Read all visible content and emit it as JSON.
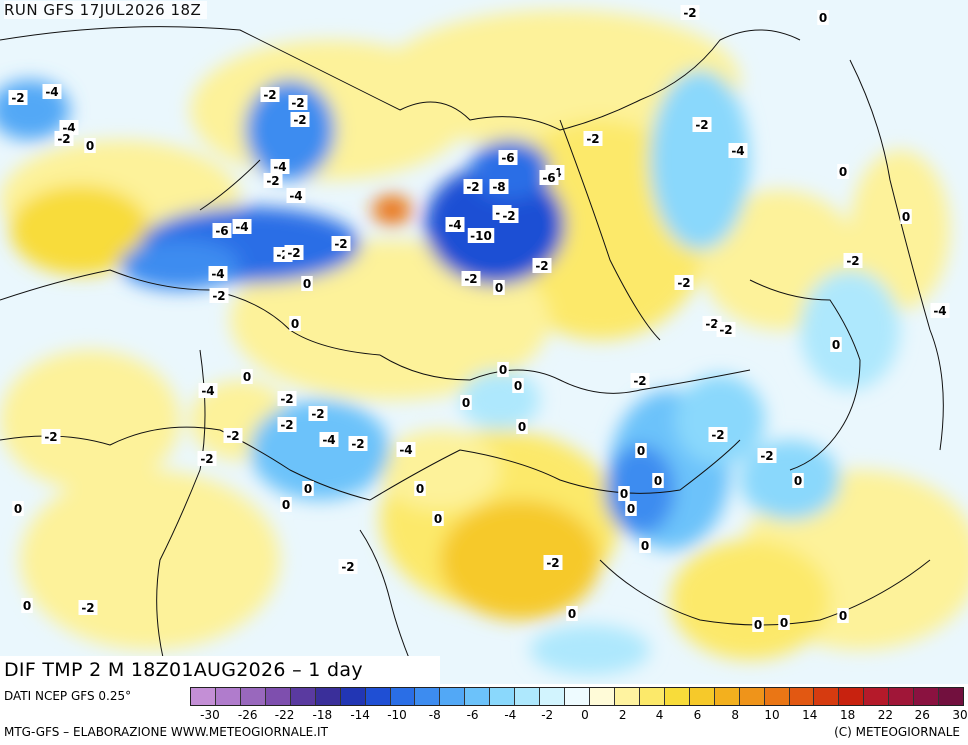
{
  "header": {
    "run_label": "RUN GFS 17JUL2026 18Z"
  },
  "footer": {
    "product_label": "DIF TMP 2 M 18Z01AUG2026 – 1 day",
    "source": "DATI NCEP GFS 0.25°",
    "credit": "MTG-GFS – ELABORAZIONE WWW.METEOGIORNALE.IT",
    "copyright": "(C) METEOGIORNALE"
  },
  "legend": {
    "colors": [
      "#c48fd6",
      "#b07ccc",
      "#9968bd",
      "#7e4fae",
      "#5a3aa0",
      "#3a2f9a",
      "#2236b4",
      "#1f4fd4",
      "#2a6ee6",
      "#3d8cf0",
      "#52a8f6",
      "#6cc2fa",
      "#8ad8fc",
      "#aee8fd",
      "#d2f4fe",
      "#eefbff",
      "#fffbd8",
      "#fff3a0",
      "#fce96a",
      "#f8dc3a",
      "#f6c92a",
      "#f3b01e",
      "#ef941a",
      "#ea7615",
      "#e25812",
      "#d63b10",
      "#c8220f",
      "#b51a2a",
      "#a01638",
      "#8a1240",
      "#72103e"
    ],
    "tick_labels": [
      "-30",
      "-26",
      "-22",
      "-18",
      "-14",
      "-10",
      "-8",
      "-6",
      "-4",
      "-2",
      "0",
      "2",
      "4",
      "6",
      "8",
      "10",
      "14",
      "18",
      "22",
      "26",
      "30"
    ]
  },
  "map_values": [
    "-2",
    "0",
    "-2",
    "-4",
    "-2",
    "-2",
    "-4",
    "-2",
    "0",
    "-2",
    "-4",
    "-2",
    "-4",
    "-4",
    "0",
    "-2",
    "-2",
    "-6",
    "-4",
    "-6",
    "-4",
    "-6",
    "-2",
    "-8",
    "-2",
    "-6",
    "-2",
    "-4",
    "-10",
    "-2",
    "-2",
    "-4",
    "-2",
    "0",
    "-2",
    "0",
    "-2",
    "-2",
    "-2",
    "0",
    "0",
    "-2",
    "0",
    "-2",
    "-4",
    "0",
    "-4",
    "0",
    "0",
    "-2",
    "-2",
    "-2",
    "0",
    "0",
    "-2",
    "-2",
    "-4",
    "-2",
    "-4",
    "-2",
    "-2",
    "-2",
    "-2",
    "0",
    "0",
    "0",
    "0",
    "0",
    "0",
    "0",
    "0",
    "0",
    "0",
    "0",
    "-2",
    "-2",
    "-2",
    "0",
    "0",
    "0",
    "0",
    "0"
  ]
}
